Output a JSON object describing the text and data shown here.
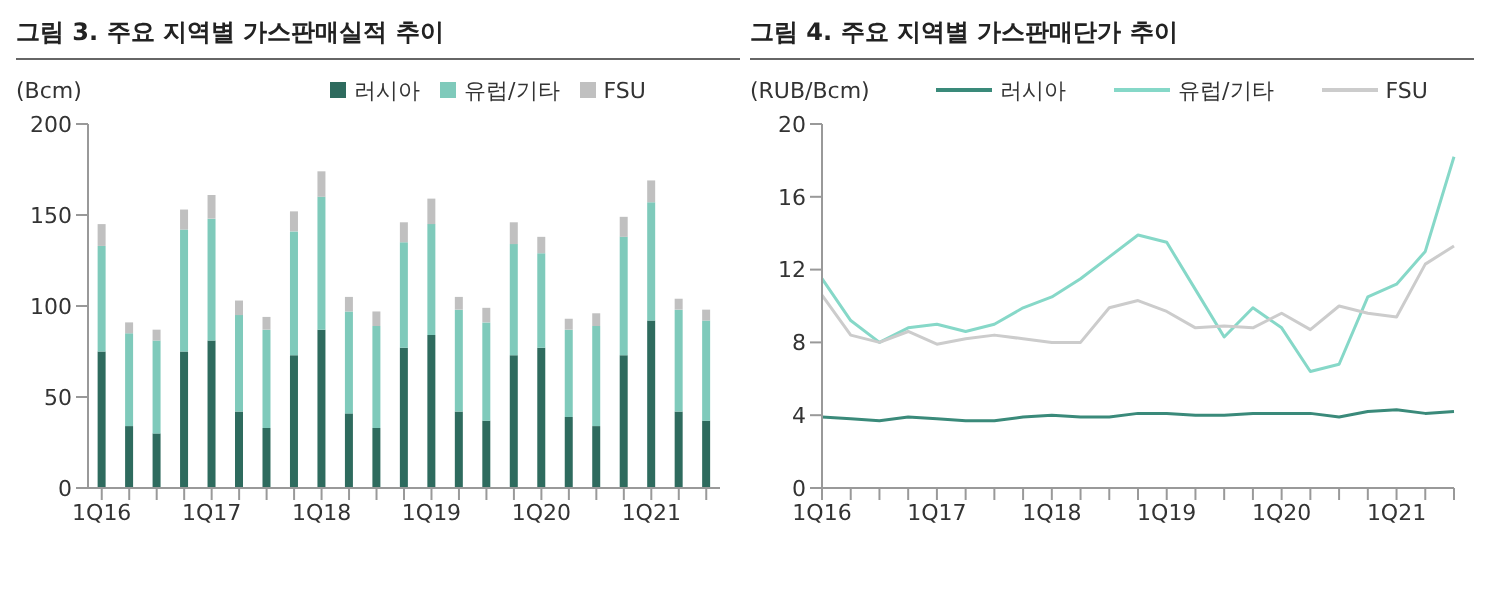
{
  "chart_data": [
    {
      "type": "bar",
      "title": "그림 3. 주요 지역별 가스판매실적 추이",
      "ylabel": "(Bcm)",
      "stacked": true,
      "legend": "top",
      "grid": false,
      "categories": [
        "1Q16",
        null,
        null,
        null,
        "1Q17",
        null,
        null,
        null,
        "1Q18",
        null,
        null,
        null,
        "1Q19",
        null,
        null,
        null,
        "1Q20",
        null,
        null,
        null,
        "1Q21",
        null,
        null
      ],
      "ylim": [
        0,
        200
      ],
      "yticks": [
        0,
        50,
        100,
        150,
        200
      ],
      "series": [
        {
          "name": "러시아",
          "color": "#2e6b5e",
          "values": [
            75,
            34,
            30,
            75,
            81,
            42,
            33,
            73,
            87,
            41,
            33,
            77,
            84,
            42,
            37,
            73,
            77,
            39,
            34,
            73,
            92,
            42,
            37
          ]
        },
        {
          "name": "유럽/기타",
          "color": "#7fcabb",
          "values": [
            58,
            51,
            51,
            67,
            67,
            53,
            54,
            68,
            73,
            56,
            56,
            58,
            61,
            56,
            54,
            61,
            52,
            48,
            55,
            65,
            65,
            56,
            55
          ]
        },
        {
          "name": "FSU",
          "color": "#c0c0c0",
          "values": [
            12,
            6,
            6,
            11,
            13,
            8,
            7,
            11,
            14,
            8,
            8,
            11,
            14,
            7,
            8,
            12,
            9,
            6,
            7,
            11,
            12,
            6,
            6
          ]
        }
      ]
    },
    {
      "type": "line",
      "title": "그림 4. 주요 지역별 가스판매단가 추이",
      "ylabel": "(RUB/Bcm)",
      "legend": "top",
      "grid": false,
      "marker": "none",
      "categories": [
        "1Q16",
        null,
        null,
        null,
        "1Q17",
        null,
        null,
        null,
        "1Q18",
        null,
        null,
        null,
        "1Q19",
        null,
        null,
        null,
        "1Q20",
        null,
        null,
        null,
        "1Q21",
        null,
        null
      ],
      "ylim": [
        0,
        20
      ],
      "yticks": [
        0,
        4,
        8,
        12,
        16,
        20
      ],
      "series": [
        {
          "name": "러시아",
          "color": "#3a8a7a",
          "values": [
            3.9,
            3.8,
            3.7,
            3.9,
            3.8,
            3.7,
            3.7,
            3.9,
            4.0,
            3.9,
            3.9,
            4.1,
            4.1,
            4.0,
            4.0,
            4.1,
            4.1,
            4.1,
            3.9,
            4.2,
            4.3,
            4.1,
            4.2
          ]
        },
        {
          "name": "유럽/기타",
          "color": "#86d8c8",
          "values": [
            11.5,
            9.2,
            8.0,
            8.8,
            9.0,
            8.6,
            9.0,
            9.9,
            10.5,
            11.5,
            12.7,
            13.9,
            13.5,
            10.9,
            8.3,
            9.9,
            8.8,
            6.4,
            6.8,
            10.5,
            11.2,
            13.0,
            18.2
          ]
        },
        {
          "name": "FSU",
          "color": "#cccccc",
          "values": [
            10.6,
            8.4,
            8.0,
            8.6,
            7.9,
            8.2,
            8.4,
            8.2,
            8.0,
            8.0,
            9.9,
            10.3,
            9.7,
            8.8,
            8.9,
            8.8,
            9.6,
            8.7,
            10.0,
            9.6,
            9.4,
            12.3,
            13.3
          ]
        }
      ]
    }
  ]
}
